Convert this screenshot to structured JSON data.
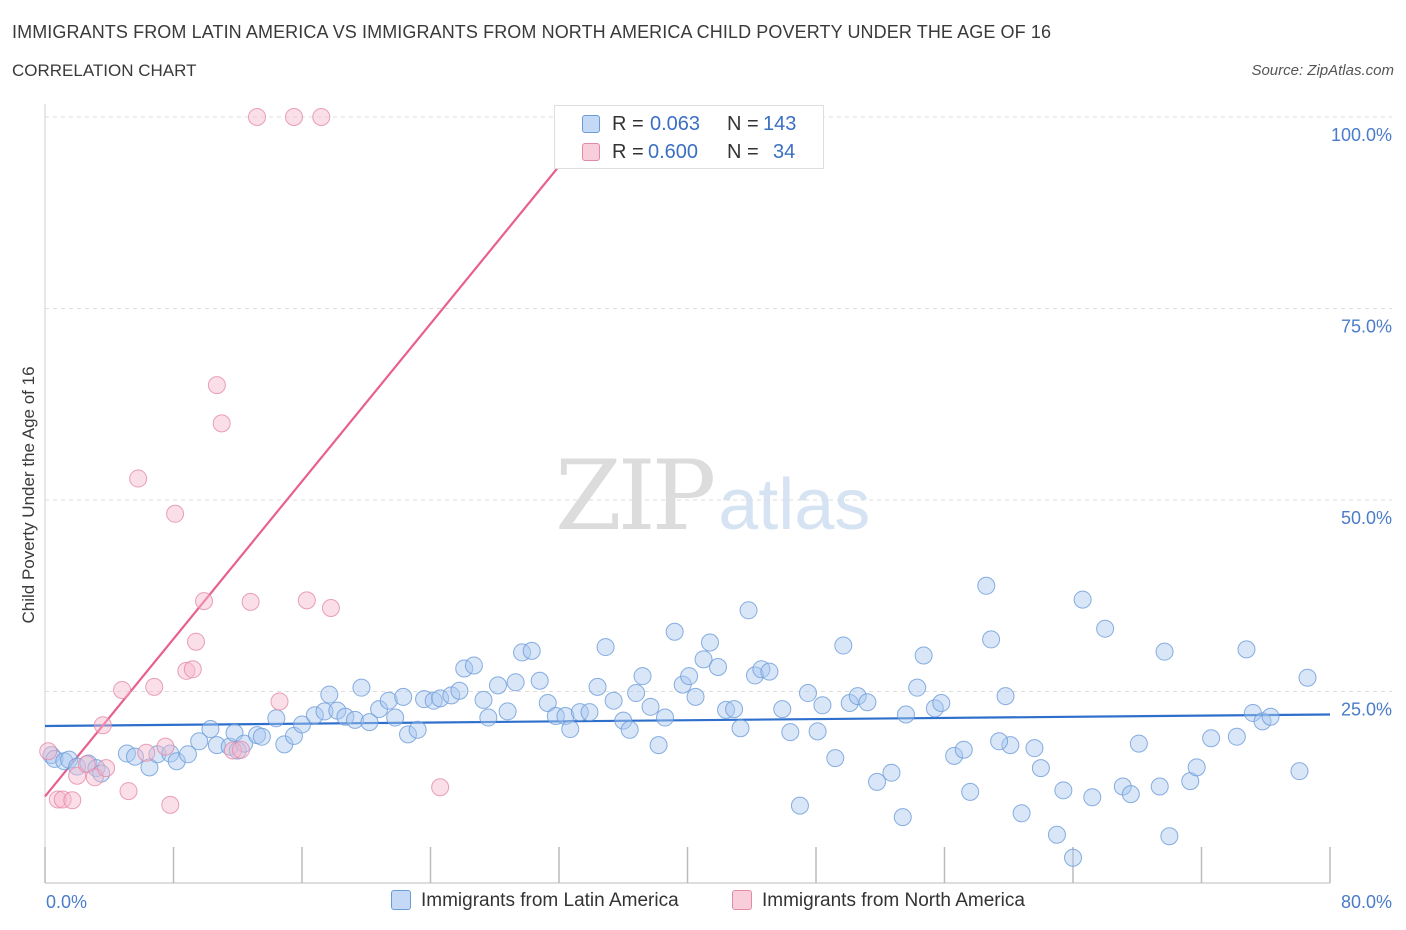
{
  "header": {
    "title": "IMMIGRANTS FROM LATIN AMERICA VS IMMIGRANTS FROM NORTH AMERICA CHILD POVERTY UNDER THE AGE OF 16",
    "subtitle": "CORRELATION CHART",
    "source": "Source: ZipAtlas.com"
  },
  "watermark": {
    "zip": "ZIP",
    "atlas": "atlas"
  },
  "legend": {
    "rows": [
      {
        "r_label": "R =",
        "r_value": "0.063",
        "n_label": "N =",
        "n_value": "143",
        "color": "#a9c8f0"
      },
      {
        "r_label": "R =",
        "r_value": "0.600",
        "n_label": "N =",
        "n_value": "34",
        "color": "#f7b8cb"
      }
    ]
  },
  "bottom_legend": [
    {
      "label": "Immigrants from Latin America",
      "color": "#a9c8f0"
    },
    {
      "label": "Immigrants from North America",
      "color": "#f7b8cb"
    }
  ],
  "chart_data": {
    "type": "scatter",
    "title": "IMMIGRANTS FROM LATIN AMERICA VS IMMIGRANTS FROM NORTH AMERICA CHILD POVERTY UNDER THE AGE OF 16",
    "subtitle": "CORRELATION CHART",
    "xlabel": "",
    "ylabel": "Child Poverty Under the Age of 16",
    "xlim": [
      0,
      80
    ],
    "ylim": [
      0,
      100
    ],
    "x_tick_labels": [
      "0.0%",
      "80.0%"
    ],
    "y_ticks": [
      25,
      50,
      75,
      100
    ],
    "y_tick_labels": [
      "25.0%",
      "50.0%",
      "75.0%",
      "100.0%"
    ],
    "grid": true,
    "legend_position": "top-center",
    "series": [
      {
        "name": "Immigrants from Latin America",
        "color": "#a9c8f0",
        "stroke": "#6b9bd8",
        "line_color": "#2f6fcc",
        "trend": {
          "x": [
            0,
            80
          ],
          "y": [
            20.5,
            22.0
          ]
        },
        "points": [
          [
            0.4,
            16.7
          ],
          [
            0.6,
            16.2
          ],
          [
            1.2,
            15.9
          ],
          [
            1.5,
            16.1
          ],
          [
            2.0,
            15.2
          ],
          [
            2.7,
            15.6
          ],
          [
            3.2,
            15.0
          ],
          [
            3.5,
            14.3
          ],
          [
            5.1,
            16.9
          ],
          [
            5.6,
            16.5
          ],
          [
            6.5,
            15.1
          ],
          [
            7.0,
            16.8
          ],
          [
            7.8,
            16.9
          ],
          [
            8.2,
            15.9
          ],
          [
            8.9,
            16.8
          ],
          [
            9.6,
            18.5
          ],
          [
            10.3,
            20.1
          ],
          [
            10.7,
            18.0
          ],
          [
            11.5,
            17.8
          ],
          [
            11.8,
            19.6
          ],
          [
            12.0,
            17.3
          ],
          [
            12.4,
            18.2
          ],
          [
            13.2,
            19.3
          ],
          [
            13.5,
            19.1
          ],
          [
            14.4,
            21.5
          ],
          [
            14.9,
            18.1
          ],
          [
            15.5,
            19.2
          ],
          [
            16.0,
            20.7
          ],
          [
            16.8,
            21.9
          ],
          [
            17.4,
            22.4
          ],
          [
            17.7,
            24.6
          ],
          [
            18.2,
            22.5
          ],
          [
            18.7,
            21.7
          ],
          [
            19.3,
            21.3
          ],
          [
            19.7,
            25.5
          ],
          [
            20.2,
            21.0
          ],
          [
            20.8,
            22.7
          ],
          [
            21.4,
            23.8
          ],
          [
            21.8,
            21.6
          ],
          [
            22.3,
            24.3
          ],
          [
            22.6,
            19.4
          ],
          [
            23.2,
            20.0
          ],
          [
            23.6,
            24.0
          ],
          [
            24.2,
            23.8
          ],
          [
            24.6,
            24.1
          ],
          [
            25.3,
            24.5
          ],
          [
            25.8,
            25.1
          ],
          [
            26.1,
            28.0
          ],
          [
            26.7,
            28.4
          ],
          [
            27.3,
            23.9
          ],
          [
            27.6,
            21.6
          ],
          [
            28.2,
            25.8
          ],
          [
            28.8,
            22.4
          ],
          [
            29.3,
            26.2
          ],
          [
            29.7,
            30.1
          ],
          [
            30.3,
            30.3
          ],
          [
            30.8,
            26.4
          ],
          [
            31.3,
            23.5
          ],
          [
            31.8,
            21.8
          ],
          [
            32.4,
            21.8
          ],
          [
            32.7,
            20.1
          ],
          [
            33.3,
            22.3
          ],
          [
            33.9,
            22.3
          ],
          [
            34.4,
            25.6
          ],
          [
            34.9,
            30.8
          ],
          [
            35.4,
            23.8
          ],
          [
            36.0,
            21.2
          ],
          [
            36.4,
            20.0
          ],
          [
            36.8,
            24.8
          ],
          [
            37.2,
            27.0
          ],
          [
            37.7,
            23.0
          ],
          [
            38.2,
            18.0
          ],
          [
            38.6,
            21.6
          ],
          [
            39.2,
            32.8
          ],
          [
            39.7,
            25.9
          ],
          [
            40.1,
            27.0
          ],
          [
            40.5,
            24.3
          ],
          [
            41.0,
            29.2
          ],
          [
            41.4,
            31.4
          ],
          [
            41.9,
            28.2
          ],
          [
            42.4,
            22.6
          ],
          [
            42.9,
            22.7
          ],
          [
            43.3,
            20.2
          ],
          [
            43.8,
            35.6
          ],
          [
            44.2,
            27.1
          ],
          [
            44.6,
            27.9
          ],
          [
            45.1,
            27.6
          ],
          [
            45.9,
            22.7
          ],
          [
            46.4,
            19.7
          ],
          [
            47.0,
            10.1
          ],
          [
            47.5,
            24.8
          ],
          [
            48.1,
            19.8
          ],
          [
            48.4,
            23.2
          ],
          [
            49.2,
            16.3
          ],
          [
            49.7,
            31.0
          ],
          [
            50.1,
            23.5
          ],
          [
            50.6,
            24.4
          ],
          [
            51.2,
            23.6
          ],
          [
            51.8,
            13.2
          ],
          [
            52.7,
            14.4
          ],
          [
            53.4,
            8.6
          ],
          [
            53.6,
            22.0
          ],
          [
            54.3,
            25.5
          ],
          [
            54.7,
            29.7
          ],
          [
            55.4,
            22.8
          ],
          [
            55.8,
            23.5
          ],
          [
            56.6,
            16.6
          ],
          [
            57.2,
            17.4
          ],
          [
            57.6,
            11.9
          ],
          [
            58.6,
            38.8
          ],
          [
            58.9,
            31.8
          ],
          [
            59.8,
            24.4
          ],
          [
            60.1,
            18.0
          ],
          [
            60.8,
            9.1
          ],
          [
            61.6,
            17.6
          ],
          [
            62.0,
            15.0
          ],
          [
            63.0,
            6.3
          ],
          [
            63.4,
            12.1
          ],
          [
            64.0,
            3.3
          ],
          [
            64.6,
            37.0
          ],
          [
            65.2,
            11.2
          ],
          [
            66.0,
            33.2
          ],
          [
            67.1,
            12.6
          ],
          [
            67.6,
            11.6
          ],
          [
            68.1,
            18.2
          ],
          [
            69.4,
            12.6
          ],
          [
            69.7,
            30.2
          ],
          [
            70.0,
            6.1
          ],
          [
            71.3,
            13.3
          ],
          [
            71.7,
            15.1
          ],
          [
            72.6,
            18.9
          ],
          [
            74.2,
            19.1
          ],
          [
            74.8,
            30.5
          ],
          [
            75.2,
            22.2
          ],
          [
            75.8,
            21.1
          ],
          [
            76.3,
            21.7
          ],
          [
            78.1,
            14.6
          ],
          [
            78.6,
            26.8
          ],
          [
            59.4,
            18.5
          ]
        ]
      },
      {
        "name": "Immigrants from North America",
        "color": "#f7b8cb",
        "stroke": "#e48aa8",
        "line_color": "#e8608c",
        "trend": {
          "x": [
            0,
            34.5
          ],
          "y": [
            11.3,
            100
          ]
        },
        "points": [
          [
            0.2,
            17.2
          ],
          [
            0.8,
            10.9
          ],
          [
            1.1,
            10.9
          ],
          [
            1.7,
            10.8
          ],
          [
            2.0,
            14.0
          ],
          [
            2.6,
            15.5
          ],
          [
            3.1,
            13.8
          ],
          [
            3.6,
            20.6
          ],
          [
            4.8,
            25.2
          ],
          [
            5.2,
            12.0
          ],
          [
            5.8,
            52.8
          ],
          [
            6.3,
            17.0
          ],
          [
            6.8,
            25.6
          ],
          [
            7.5,
            17.8
          ],
          [
            7.8,
            10.2
          ],
          [
            8.1,
            48.2
          ],
          [
            8.8,
            27.7
          ],
          [
            9.2,
            27.9
          ],
          [
            9.4,
            31.5
          ],
          [
            9.9,
            36.8
          ],
          [
            10.7,
            65.0
          ],
          [
            11.0,
            60.0
          ],
          [
            11.7,
            17.3
          ],
          [
            12.2,
            17.4
          ],
          [
            12.8,
            36.7
          ],
          [
            13.2,
            100.0
          ],
          [
            14.6,
            23.7
          ],
          [
            15.5,
            100.0
          ],
          [
            16.3,
            36.9
          ],
          [
            17.2,
            100.0
          ],
          [
            17.8,
            35.9
          ],
          [
            24.6,
            12.5
          ],
          [
            33.3,
            100.0
          ],
          [
            3.8,
            15.0
          ]
        ]
      }
    ]
  }
}
